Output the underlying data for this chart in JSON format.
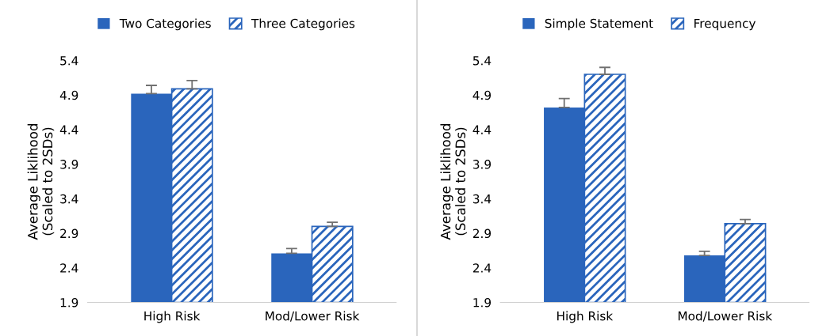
{
  "chart_data": [
    {
      "type": "bar",
      "ylabel": "Average Liklihood\n(Scaled to 2SDs)",
      "categories": [
        "High Risk",
        "Mod/Lower Risk"
      ],
      "ylim": [
        1.9,
        5.4
      ],
      "yticks": [
        1.9,
        2.4,
        2.9,
        3.4,
        3.9,
        4.4,
        4.9,
        5.4
      ],
      "grid": false,
      "legend": "top",
      "series": [
        {
          "name": "Two Categories",
          "color": "#2a65bc",
          "values": [
            4.92,
            2.61
          ],
          "errors": [
            [
              4.92,
              5.04
            ],
            [
              2.61,
              2.68
            ]
          ]
        },
        {
          "name": "Three Categories",
          "color": "#2a65bc",
          "values": [
            4.99,
            3.0
          ],
          "errors": [
            [
              4.99,
              5.11
            ],
            [
              3.0,
              3.06
            ]
          ]
        }
      ]
    },
    {
      "type": "bar",
      "ylabel": "Average Liklihood\n(Scaled to 2SDs)",
      "categories": [
        "High Risk",
        "Mod/Lower Risk"
      ],
      "ylim": [
        1.9,
        5.4
      ],
      "yticks": [
        1.9,
        2.4,
        2.9,
        3.4,
        3.9,
        4.4,
        4.9,
        5.4
      ],
      "grid": false,
      "legend": "top",
      "series": [
        {
          "name": "Simple Statement",
          "color": "#2a65bc",
          "values": [
            4.72,
            2.58
          ],
          "errors": [
            [
              4.72,
              4.85
            ],
            [
              2.58,
              2.64
            ]
          ]
        },
        {
          "name": "Frequency",
          "color": "#2a65bc",
          "values": [
            5.2,
            3.04
          ],
          "errors": [
            [
              5.2,
              5.3
            ],
            [
              3.04,
              3.1
            ]
          ]
        }
      ]
    }
  ]
}
